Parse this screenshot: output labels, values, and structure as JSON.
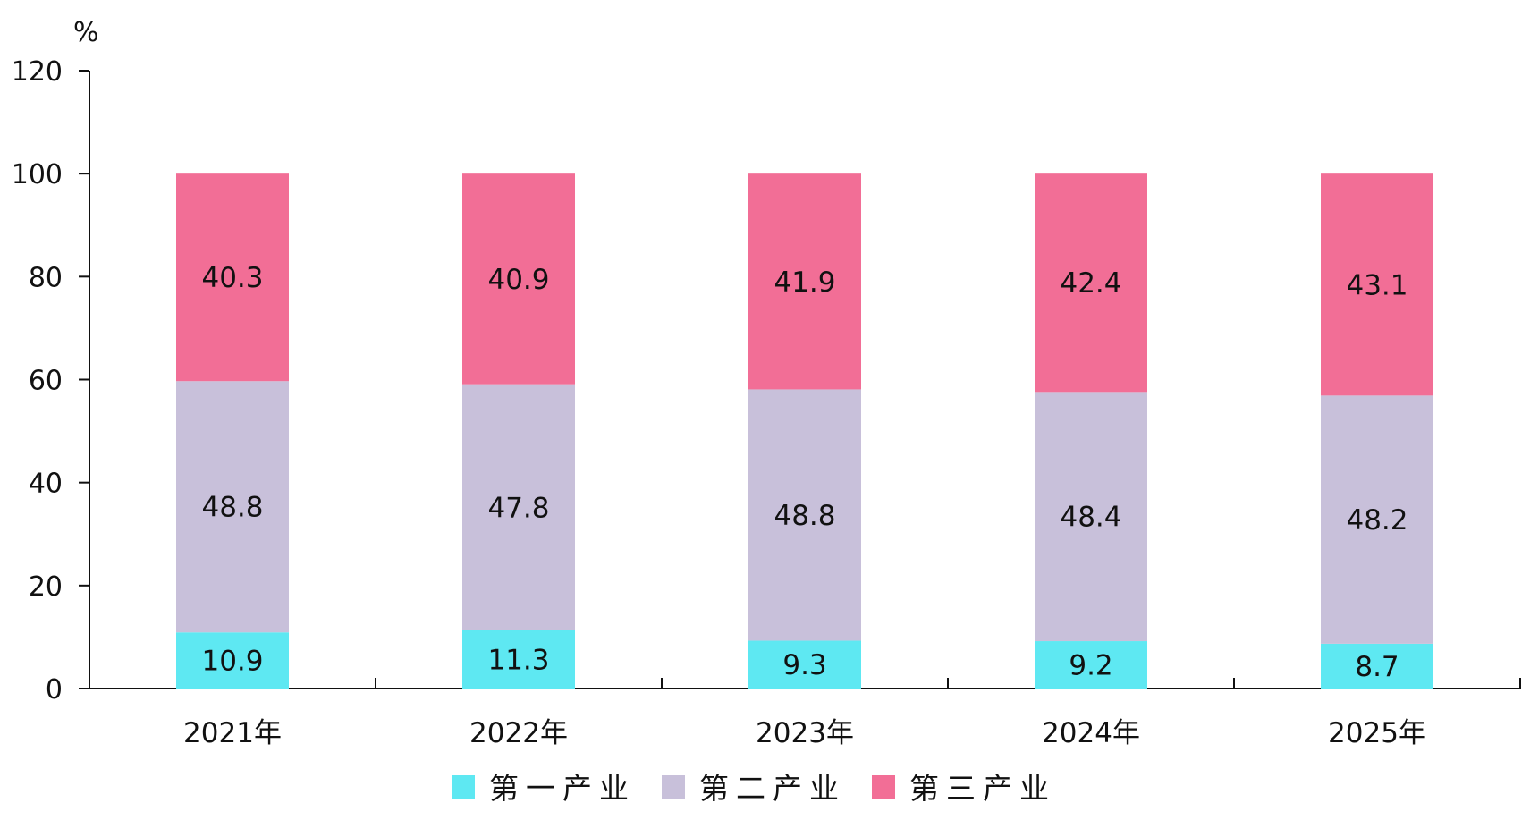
{
  "chart_data": {
    "type": "bar",
    "stacked": true,
    "title": "",
    "xlabel": "",
    "ylabel": "%",
    "ylim": [
      0,
      120
    ],
    "yticks": [
      0,
      20,
      40,
      60,
      80,
      100,
      120
    ],
    "grid": false,
    "legend_position": "bottom",
    "categories": [
      "2021年",
      "2022年",
      "2023年",
      "2024年",
      "2025年"
    ],
    "series": [
      {
        "name": "第一产业",
        "color": "#5ee8f2",
        "values": [
          10.9,
          11.3,
          9.3,
          9.2,
          8.7
        ]
      },
      {
        "name": "第二产业",
        "color": "#c8c0da",
        "values": [
          48.8,
          47.8,
          48.8,
          48.4,
          48.2
        ]
      },
      {
        "name": "第三产业",
        "color": "#f26e96",
        "values": [
          40.3,
          40.9,
          41.9,
          42.4,
          43.1
        ]
      }
    ],
    "data_label_values": [
      [
        "10.9",
        "11.3",
        "9.3",
        "9.2",
        "8.7"
      ],
      [
        "48.8",
        "47.8",
        "48.8",
        "48.4",
        "48.2"
      ],
      [
        "40.3",
        "40.9",
        "41.9",
        "42.4",
        "43.1"
      ]
    ]
  }
}
